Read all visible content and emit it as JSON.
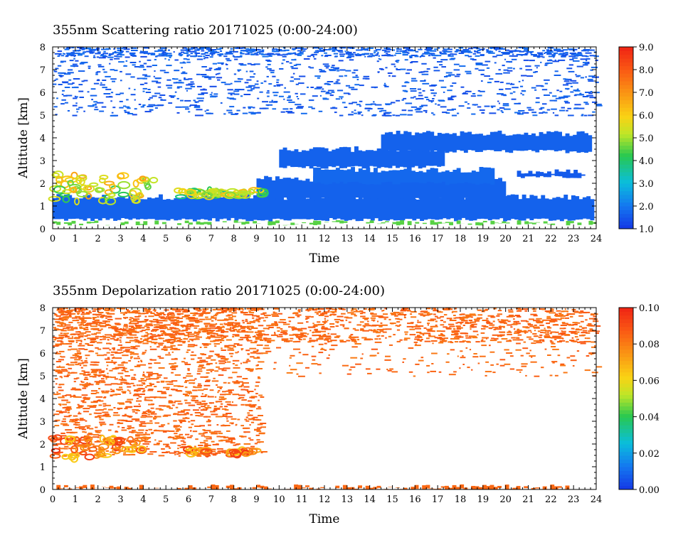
{
  "chart_data": [
    {
      "type": "heatmap",
      "title": "355nm Scattering ratio  20171025 (0:00-24:00)",
      "xlabel": "Time",
      "ylabel": "Altitude [km]",
      "xlim": [
        0,
        24
      ],
      "ylim": [
        0,
        8
      ],
      "x_ticks": [
        "0",
        "1",
        "2",
        "3",
        "4",
        "5",
        "6",
        "7",
        "8",
        "9",
        "10",
        "11",
        "12",
        "13",
        "14",
        "15",
        "16",
        "17",
        "18",
        "19",
        "20",
        "21",
        "22",
        "23",
        "24"
      ],
      "y_ticks": [
        "0",
        "1",
        "2",
        "3",
        "4",
        "5",
        "6",
        "7",
        "8"
      ],
      "colorbar": {
        "min": 1.0,
        "max": 9.0,
        "ticks": [
          "1.0",
          "2.0",
          "3.0",
          "4.0",
          "5.0",
          "6.0",
          "7.0",
          "8.0",
          "9.0"
        ]
      },
      "features": [
        {
          "kind": "band",
          "t0": 0,
          "t1": 23.9,
          "z0": 0.4,
          "z1": 1.4,
          "value": 1.6
        },
        {
          "kind": "band",
          "t0": 9,
          "t1": 20,
          "z0": 1.3,
          "z1": 2.2,
          "value": 1.6
        },
        {
          "kind": "band",
          "t0": 11.5,
          "t1": 19.5,
          "z0": 2.0,
          "z1": 2.6,
          "value": 1.7
        },
        {
          "kind": "band",
          "t0": 10,
          "t1": 17.3,
          "z0": 2.7,
          "z1": 3.5,
          "value": 1.6
        },
        {
          "kind": "band",
          "t0": 14.5,
          "t1": 23.8,
          "z0": 3.4,
          "z1": 4.2,
          "value": 1.6
        },
        {
          "kind": "band",
          "t0": 20.5,
          "t1": 23.5,
          "z0": 2.3,
          "z1": 2.5,
          "value": 1.5
        },
        {
          "kind": "band",
          "t0": 0,
          "t1": 24,
          "z0": 0.22,
          "z1": 0.26,
          "value": 4.5
        },
        {
          "kind": "scatter",
          "t0": 0,
          "t1": 24,
          "z0": 5.0,
          "z1": 8.0,
          "value": 1.5,
          "density": 0.25
        },
        {
          "kind": "scatter",
          "t0": 0,
          "t1": 24,
          "z0": 7.6,
          "z1": 8.0,
          "value": 1.6,
          "density": 0.7
        },
        {
          "kind": "cloud",
          "t0": 0,
          "t1": 4.5,
          "z0": 1.2,
          "z1": 2.4,
          "value": 5.5
        },
        {
          "kind": "cloud",
          "t0": 5.5,
          "t1": 9.5,
          "z0": 1.4,
          "z1": 1.7,
          "value": 5.0
        }
      ]
    },
    {
      "type": "heatmap",
      "title": "355nm Depolarization ratio  20171025 (0:00-24:00)",
      "xlabel": "Time",
      "ylabel": "Altitude [km]",
      "xlim": [
        0,
        24
      ],
      "ylim": [
        0,
        8
      ],
      "x_ticks": [
        "0",
        "1",
        "2",
        "3",
        "4",
        "5",
        "6",
        "7",
        "8",
        "9",
        "10",
        "11",
        "12",
        "13",
        "14",
        "15",
        "16",
        "17",
        "18",
        "19",
        "20",
        "21",
        "22",
        "23",
        "24"
      ],
      "y_ticks": [
        "0",
        "1",
        "2",
        "3",
        "4",
        "5",
        "6",
        "7",
        "8"
      ],
      "colorbar": {
        "min": 0.0,
        "max": 0.1,
        "ticks": [
          "0.00",
          "0.02",
          "0.04",
          "0.06",
          "0.08",
          "0.10"
        ]
      },
      "features": [
        {
          "kind": "scatter",
          "t0": 0,
          "t1": 24,
          "z0": 6.5,
          "z1": 8.0,
          "value": 0.085,
          "density": 0.6
        },
        {
          "kind": "scatter",
          "t0": 0,
          "t1": 9.2,
          "z0": 1.5,
          "z1": 8.0,
          "value": 0.085,
          "density": 0.45
        },
        {
          "kind": "scatter",
          "t0": 9,
          "t1": 24,
          "z0": 5.0,
          "z1": 6.5,
          "value": 0.085,
          "density": 0.12
        },
        {
          "kind": "cloud",
          "t0": 0,
          "t1": 2.4,
          "z0": 1.3,
          "z1": 2.3,
          "value": 0.08
        },
        {
          "kind": "cloud",
          "t0": 2.5,
          "t1": 4.2,
          "z0": 1.7,
          "z1": 2.3,
          "value": 0.08
        },
        {
          "kind": "cloud",
          "t0": 5.9,
          "t1": 7.0,
          "z0": 1.55,
          "z1": 1.8,
          "value": 0.08
        },
        {
          "kind": "cloud",
          "t0": 7.8,
          "t1": 9.0,
          "z0": 1.5,
          "z1": 1.75,
          "value": 0.08
        },
        {
          "kind": "band",
          "t0": 0,
          "t1": 22.8,
          "z0": 0.03,
          "z1": 0.1,
          "value": 0.085
        }
      ]
    }
  ]
}
